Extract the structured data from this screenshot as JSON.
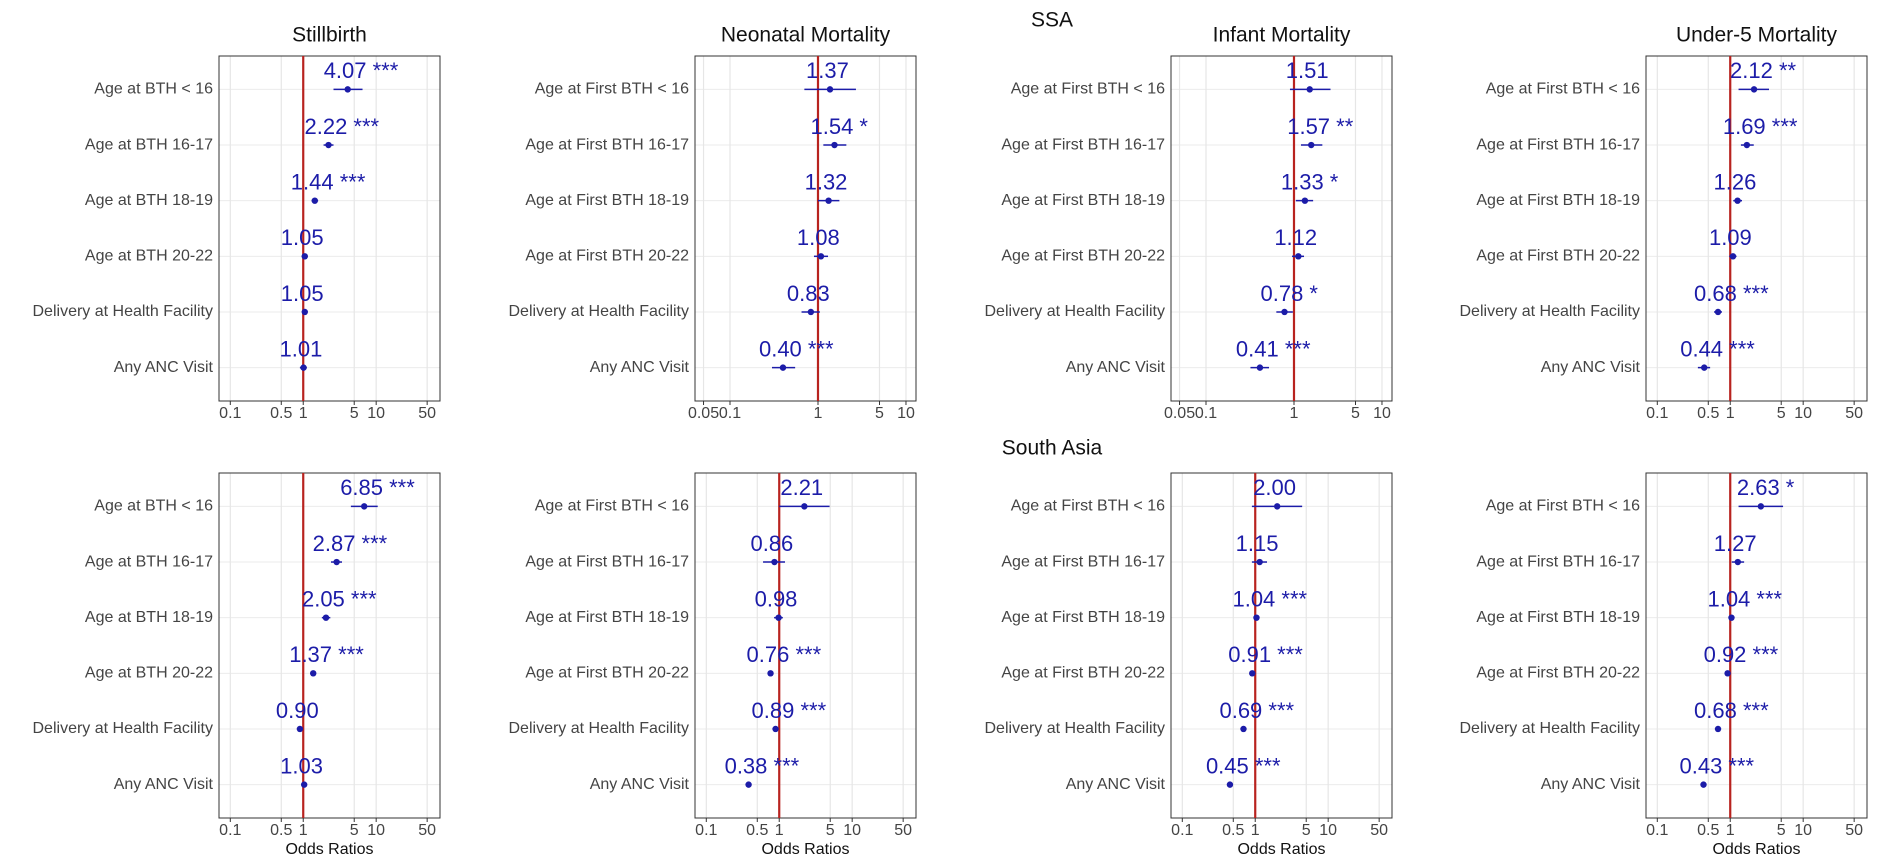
{
  "sections": [
    "SSA",
    "South Asia"
  ],
  "chart_data": [
    {
      "type": "forest",
      "title": "Stillbirth",
      "log_x": true,
      "grid": true,
      "color": "#1c1ca8",
      "ref_line": 1,
      "ref_color": "#b8231f",
      "categories": [
        "Age at BTH < 16",
        "Age at BTH 16-17",
        "Age at BTH 18-19",
        "Age at BTH 20-22",
        "Delivery at Health Facility",
        "Any ANC Visit"
      ],
      "values": [
        4.07,
        2.22,
        1.44,
        1.05,
        1.05,
        1.01
      ],
      "value_labels": [
        "4.07 ***",
        "2.22 ***",
        "1.44 ***",
        "1.05",
        "1.05",
        "1.01"
      ],
      "ci_low": [
        2.6,
        1.9,
        1.3,
        0.95,
        0.97,
        0.9
      ],
      "ci_high": [
        6.5,
        2.6,
        1.6,
        1.15,
        1.13,
        1.12
      ],
      "xlim": [
        0.07,
        75
      ],
      "xticks": [
        0.1,
        0.5,
        1,
        5,
        10,
        50
      ]
    },
    {
      "type": "forest",
      "title": "Neonatal Mortality",
      "log_x": true,
      "grid": true,
      "color": "#1c1ca8",
      "ref_line": 1,
      "ref_color": "#b8231f",
      "categories": [
        "Age at First BTH < 16",
        "Age at First BTH 16-17",
        "Age at First BTH 18-19",
        "Age at First BTH 20-22",
        "Delivery at Health Facility",
        "Any ANC Visit"
      ],
      "values": [
        1.37,
        1.54,
        1.32,
        1.08,
        0.83,
        0.4
      ],
      "value_labels": [
        "1.37",
        "1.54 *",
        "1.32",
        "1.08",
        "0.83",
        "0.40 ***"
      ],
      "ci_low": [
        0.7,
        1.15,
        1.0,
        0.9,
        0.65,
        0.3
      ],
      "ci_high": [
        2.7,
        2.1,
        1.75,
        1.3,
        1.05,
        0.55
      ],
      "xlim": [
        0.04,
        13
      ],
      "xticks": [
        0.05,
        0.1,
        1,
        5,
        10
      ]
    },
    {
      "type": "forest",
      "title": "Infant Mortality",
      "log_x": true,
      "grid": true,
      "color": "#1c1ca8",
      "ref_line": 1,
      "ref_color": "#b8231f",
      "categories": [
        "Age at First BTH < 16",
        "Age at First BTH 16-17",
        "Age at First BTH 18-19",
        "Age at First BTH 20-22",
        "Delivery at Health Facility",
        "Any ANC Visit"
      ],
      "values": [
        1.51,
        1.57,
        1.33,
        1.12,
        0.78,
        0.41
      ],
      "value_labels": [
        "1.51",
        "1.57 **",
        "1.33 *",
        "1.12",
        "0.78 *",
        "0.41 ***"
      ],
      "ci_low": [
        0.9,
        1.2,
        1.05,
        0.95,
        0.63,
        0.32
      ],
      "ci_high": [
        2.6,
        2.1,
        1.65,
        1.3,
        0.97,
        0.52
      ],
      "xlim": [
        0.04,
        13
      ],
      "xticks": [
        0.05,
        0.1,
        1,
        5,
        10
      ]
    },
    {
      "type": "forest",
      "title": "Under-5 Mortality",
      "log_x": true,
      "grid": true,
      "color": "#1c1ca8",
      "ref_line": 1,
      "ref_color": "#b8231f",
      "categories": [
        "Age at First BTH < 16",
        "Age at First BTH 16-17",
        "Age at First BTH 18-19",
        "Age at First BTH 20-22",
        "Delivery at Health Facility",
        "Any ANC Visit"
      ],
      "values": [
        2.12,
        1.69,
        1.26,
        1.09,
        0.68,
        0.44
      ],
      "value_labels": [
        "2.12 **",
        "1.69 ***",
        "1.26",
        "1.09",
        "0.68 ***",
        "0.44 ***"
      ],
      "ci_low": [
        1.3,
        1.4,
        1.1,
        0.97,
        0.6,
        0.36
      ],
      "ci_high": [
        3.4,
        2.1,
        1.45,
        1.22,
        0.77,
        0.53
      ],
      "xlim": [
        0.07,
        75
      ],
      "xticks": [
        0.1,
        0.5,
        1,
        5,
        10,
        50
      ]
    },
    {
      "type": "forest",
      "x_label": "Odds Ratios",
      "log_x": true,
      "grid": true,
      "color": "#1c1ca8",
      "ref_line": 1,
      "ref_color": "#b8231f",
      "categories": [
        "Age at BTH < 16",
        "Age at BTH 16-17",
        "Age at BTH 18-19",
        "Age at BTH 20-22",
        "Delivery at Health Facility",
        "Any ANC Visit"
      ],
      "values": [
        6.85,
        2.87,
        2.05,
        1.37,
        0.9,
        1.03
      ],
      "value_labels": [
        "6.85 ***",
        "2.87 ***",
        "2.05 ***",
        "1.37 ***",
        "0.90",
        "1.03"
      ],
      "ci_low": [
        4.5,
        2.4,
        1.8,
        1.25,
        0.83,
        0.95
      ],
      "ci_high": [
        10.5,
        3.4,
        2.35,
        1.5,
        0.97,
        1.1
      ],
      "xlim": [
        0.07,
        75
      ],
      "xticks": [
        0.1,
        0.5,
        1,
        5,
        10,
        50
      ]
    },
    {
      "type": "forest",
      "x_label": "Odds Ratios",
      "log_x": true,
      "grid": true,
      "color": "#1c1ca8",
      "ref_line": 1,
      "ref_color": "#b8231f",
      "categories": [
        "Age at First BTH < 16",
        "Age at First BTH 16-17",
        "Age at First BTH 18-19",
        "Age at First BTH 20-22",
        "Delivery at Health Facility",
        "Any ANC Visit"
      ],
      "values": [
        2.21,
        0.86,
        0.98,
        0.76,
        0.89,
        0.38
      ],
      "value_labels": [
        "2.21",
        "0.86",
        "0.98",
        "0.76 ***",
        "0.89 ***",
        "0.38 ***"
      ],
      "ci_low": [
        1.0,
        0.6,
        0.85,
        0.7,
        0.85,
        0.35
      ],
      "ci_high": [
        4.9,
        1.2,
        1.12,
        0.82,
        0.93,
        0.41
      ],
      "xlim": [
        0.07,
        75
      ],
      "xticks": [
        0.1,
        0.5,
        1,
        5,
        10,
        50
      ]
    },
    {
      "type": "forest",
      "x_label": "Odds Ratios",
      "log_x": true,
      "grid": true,
      "color": "#1c1ca8",
      "ref_line": 1,
      "ref_color": "#b8231f",
      "categories": [
        "Age at First BTH < 16",
        "Age at First BTH 16-17",
        "Age at First BTH 18-19",
        "Age at First BTH 20-22",
        "Delivery at Health Facility",
        "Any ANC Visit"
      ],
      "values": [
        2.0,
        1.15,
        1.04,
        0.91,
        0.69,
        0.45
      ],
      "value_labels": [
        "2.00",
        "1.15",
        "1.04 ***",
        "0.91 ***",
        "0.69 ***",
        "0.45 ***"
      ],
      "ci_low": [
        0.9,
        0.9,
        1.02,
        0.88,
        0.66,
        0.42
      ],
      "ci_high": [
        4.4,
        1.45,
        1.06,
        0.94,
        0.72,
        0.48
      ],
      "xlim": [
        0.07,
        75
      ],
      "xticks": [
        0.1,
        0.5,
        1,
        5,
        10,
        50
      ]
    },
    {
      "type": "forest",
      "x_label": "Odds Ratios",
      "log_x": true,
      "grid": true,
      "color": "#1c1ca8",
      "ref_line": 1,
      "ref_color": "#b8231f",
      "categories": [
        "Age at First BTH < 16",
        "Age at First BTH 16-17",
        "Age at First BTH 18-19",
        "Age at First BTH 20-22",
        "Delivery at Health Facility",
        "Any ANC Visit"
      ],
      "values": [
        2.63,
        1.27,
        1.04,
        0.92,
        0.68,
        0.43
      ],
      "value_labels": [
        "2.63 *",
        "1.27",
        "1.04 ***",
        "0.92 ***",
        "0.68 ***",
        "0.43 ***"
      ],
      "ci_low": [
        1.3,
        1.05,
        1.02,
        0.89,
        0.65,
        0.4
      ],
      "ci_high": [
        5.3,
        1.55,
        1.06,
        0.95,
        0.71,
        0.46
      ],
      "xlim": [
        0.07,
        75
      ],
      "xticks": [
        0.1,
        0.5,
        1,
        5,
        10,
        50
      ]
    }
  ]
}
